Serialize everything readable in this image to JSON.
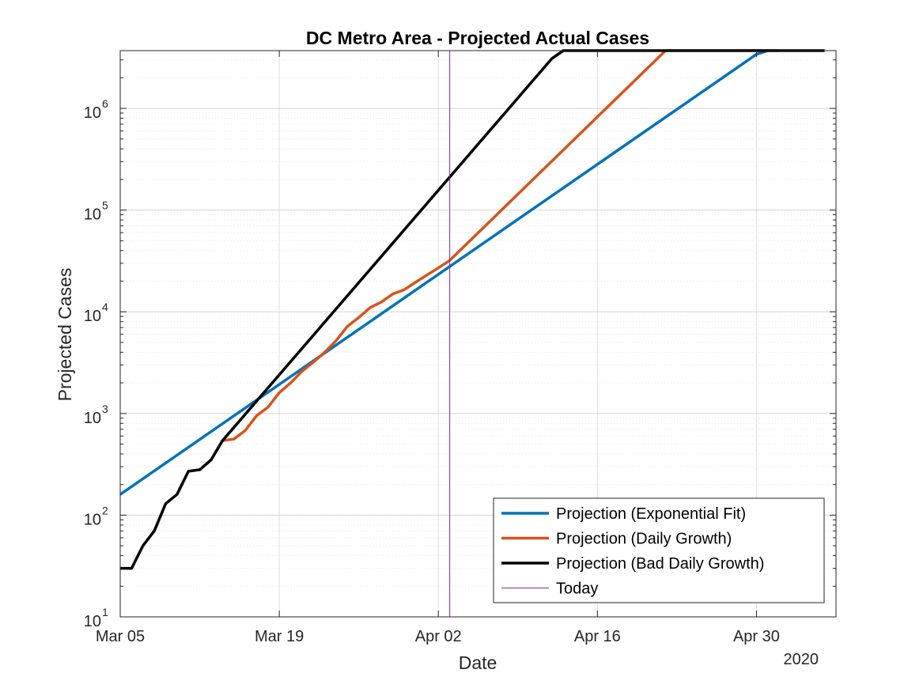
{
  "chart_data": {
    "type": "line",
    "title": "DC Metro Area - Projected Actual Cases",
    "xlabel": "Date",
    "ylabel": "Projected Cases",
    "x_year_label": "2020",
    "yscale": "log",
    "ylim": [
      10,
      3700000
    ],
    "xlim": [
      "2020-03-05",
      "2020-05-07"
    ],
    "x_ticks": [
      {
        "date": "2020-03-05",
        "label": "Mar 05"
      },
      {
        "date": "2020-03-19",
        "label": "Mar 19"
      },
      {
        "date": "2020-04-02",
        "label": "Apr 02"
      },
      {
        "date": "2020-04-16",
        "label": "Apr 16"
      },
      {
        "date": "2020-04-30",
        "label": "Apr 30"
      }
    ],
    "y_ticks": [
      {
        "value": 10,
        "base": "10",
        "exp": "1"
      },
      {
        "value": 100,
        "base": "10",
        "exp": "2"
      },
      {
        "value": 1000,
        "base": "10",
        "exp": "3"
      },
      {
        "value": 10000,
        "base": "10",
        "exp": "4"
      },
      {
        "value": 100000,
        "base": "10",
        "exp": "5"
      },
      {
        "value": 1000000,
        "base": "10",
        "exp": "6"
      }
    ],
    "grid": true,
    "legend_position": "bottom-right",
    "series": [
      {
        "name": "Projection (Exponential Fit)",
        "color": "#0072BD",
        "width": 3.5,
        "x": [
          "2020-03-05",
          "2020-04-30",
          "2020-05-01"
        ],
        "y": [
          160,
          3400000,
          3700000
        ]
      },
      {
        "name": "Projection (Daily Growth)",
        "color": "#D95319",
        "width": 3.5,
        "x": [
          "2020-03-14",
          "2020-03-15",
          "2020-03-16",
          "2020-03-17",
          "2020-03-18",
          "2020-03-19",
          "2020-03-20",
          "2020-03-21",
          "2020-03-22",
          "2020-03-23",
          "2020-03-24",
          "2020-03-25",
          "2020-03-26",
          "2020-03-27",
          "2020-03-28",
          "2020-03-29",
          "2020-03-30",
          "2020-03-31",
          "2020-04-01",
          "2020-04-02",
          "2020-04-03",
          "2020-04-22",
          "2020-04-23",
          "2020-05-02"
        ],
        "y": [
          540,
          560,
          680,
          950,
          1150,
          1600,
          2000,
          2600,
          3200,
          4000,
          5200,
          7200,
          8800,
          11000,
          12500,
          15000,
          16500,
          19500,
          23000,
          27000,
          32000,
          3700000,
          3700000,
          3700000
        ]
      },
      {
        "name": "Projection (Bad Daily Growth)",
        "color": "#000000",
        "width": 3.5,
        "x": [
          "2020-03-05",
          "2020-03-06",
          "2020-03-07",
          "2020-03-08",
          "2020-03-09",
          "2020-03-10",
          "2020-03-11",
          "2020-03-12",
          "2020-03-13",
          "2020-03-14",
          "2020-04-12",
          "2020-04-13",
          "2020-05-06"
        ],
        "y": [
          30,
          30,
          50,
          70,
          130,
          160,
          270,
          280,
          350,
          540,
          3100000,
          3700000,
          3700000
        ]
      },
      {
        "name": "Today",
        "color": "#7E2F8E",
        "width": 1,
        "x": [
          "2020-04-03",
          "2020-04-03"
        ],
        "y": [
          10,
          3700000
        ]
      }
    ]
  }
}
